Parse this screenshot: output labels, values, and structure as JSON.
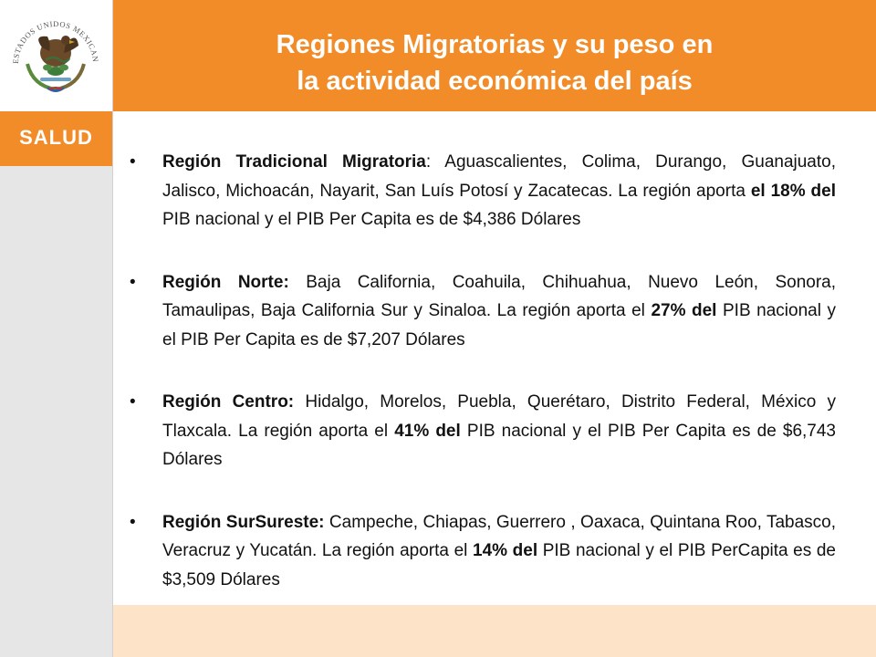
{
  "header": {
    "title_line1": "Regiones Migratorias y su peso en",
    "title_line2": "la actividad económica del país"
  },
  "sidebar": {
    "logo_icon": "mexico-coat-of-arms-icon",
    "logo_text": "ESTADOS UNIDOS MEXICANOS",
    "salud_label": "SALUD"
  },
  "colors": {
    "accent": "#f28c28",
    "sidebar": "#e6e6e6",
    "bottom_band": "#fde4c8"
  },
  "regions": [
    {
      "name": "Región Tradicional Migratoria",
      "sep": ": ",
      "states": "Aguascalientes, Colima, Durango, Guanajuato, Jalisco, Michoacán, Nayarit, San Luís Potosí y Zacatecas. La región aporta ",
      "share": "el 18% del",
      "rest": " PIB nacional y el PIB Per Capita es de $4,386 Dólares"
    },
    {
      "name": "Región Norte:",
      "sep": " ",
      "states": "Baja California, Coahuila, Chihuahua, Nuevo León, Sonora, Tamaulipas, Baja California Sur y Sinaloa. La región aporta el ",
      "share": "27% del",
      "rest": " PIB nacional y el PIB Per Capita es de $7,207 Dólares"
    },
    {
      "name": "Región Centro:",
      "sep": " ",
      "states": "Hidalgo, Morelos, Puebla, Querétaro, Distrito Federal, México y Tlaxcala. La región aporta el ",
      "share": "41% del",
      "rest": " PIB nacional y el PIB  Per Capita es de $6,743 Dólares"
    },
    {
      "name": "Región SurSureste:",
      "sep": " ",
      "states": "Campeche, Chiapas, Guerrero , Oaxaca, Quintana Roo, Tabasco, Veracruz y Yucatán. La región aporta el ",
      "share": "14% del",
      "rest": " PIB nacional y el PIB PerCapita es de $3,509 Dólares"
    }
  ]
}
